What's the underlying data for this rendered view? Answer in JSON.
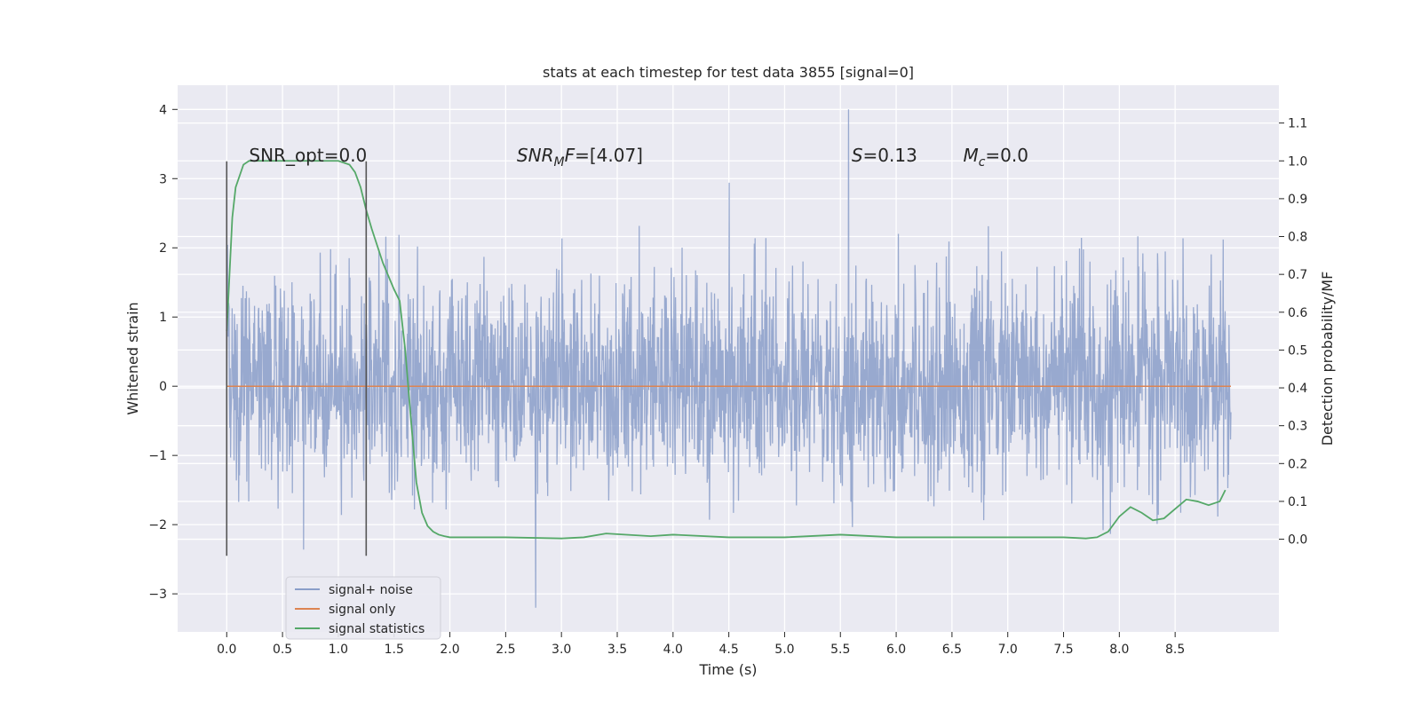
{
  "chart_data": {
    "type": "line",
    "title": "stats at each timestep for test data 3855 [signal=0]",
    "xlabel": "Time (s)",
    "ylabel": "Whitened strain",
    "y2label": "Detection probability/MF",
    "xlim": [
      -0.44,
      9.43
    ],
    "ylim": [
      -3.55,
      4.35
    ],
    "y2lim": [
      -0.245,
      1.2
    ],
    "x_ticks": [
      0.0,
      0.5,
      1.0,
      1.5,
      2.0,
      2.5,
      3.0,
      3.5,
      4.0,
      4.5,
      5.0,
      5.5,
      6.0,
      6.5,
      7.0,
      7.5,
      8.0,
      8.5
    ],
    "x_tick_labels": [
      "0.0",
      "0.5",
      "1.0",
      "1.5",
      "2.0",
      "2.5",
      "3.0",
      "3.5",
      "4.0",
      "4.5",
      "5.0",
      "5.5",
      "6.0",
      "6.5",
      "7.0",
      "7.5",
      "8.0",
      "8.5"
    ],
    "y_ticks": [
      4,
      3,
      2,
      1,
      0,
      -1,
      -2,
      -3
    ],
    "y_tick_labels": [
      "4",
      "3",
      "2",
      "1",
      "0",
      "−1",
      "−2",
      "−3"
    ],
    "y2_ticks": [
      1.1,
      1.0,
      0.9,
      0.8,
      0.7,
      0.6,
      0.5,
      0.4,
      0.3,
      0.2,
      0.1,
      0.0
    ],
    "y2_tick_labels": [
      "1.1",
      "1.0",
      "0.9",
      "0.8",
      "0.7",
      "0.6",
      "0.5",
      "0.4",
      "0.3",
      "0.2",
      "0.1",
      "0.0"
    ],
    "grid": true,
    "legend_position": "lower-left",
    "noise": {
      "x_range": [
        0.0,
        9.0
      ],
      "typical_range": [
        -1.3,
        1.5
      ],
      "max": 4.0,
      "min": -3.2
    },
    "series": [
      {
        "name": "signal+ noise",
        "color": "#8a9ec9",
        "axis": "left",
        "values": "noise"
      },
      {
        "name": "signal only",
        "color": "#dd8452",
        "axis": "left",
        "x": [
          0.0,
          9.0
        ],
        "y": [
          0.0,
          0.0
        ]
      },
      {
        "name": "signal statistics",
        "color": "#55a868",
        "axis": "right",
        "x": [
          0.0,
          0.05,
          0.08,
          0.15,
          0.2,
          0.3,
          0.5,
          0.7,
          0.9,
          1.0,
          1.1,
          1.15,
          1.2,
          1.25,
          1.3,
          1.4,
          1.5,
          1.55,
          1.6,
          1.65,
          1.7,
          1.75,
          1.8,
          1.85,
          1.9,
          1.95,
          2.0,
          2.2,
          2.5,
          3.0,
          3.2,
          3.4,
          3.8,
          4.0,
          4.5,
          5.0,
          5.5,
          6.0,
          6.5,
          7.0,
          7.5,
          7.7,
          7.8,
          7.9,
          8.0,
          8.1,
          8.2,
          8.3,
          8.4,
          8.5,
          8.6,
          8.7,
          8.8,
          8.9,
          8.95
        ],
        "y": [
          0.55,
          0.85,
          0.93,
          0.99,
          1.0,
          1.0,
          1.0,
          1.0,
          1.0,
          1.0,
          0.99,
          0.97,
          0.93,
          0.87,
          0.82,
          0.73,
          0.66,
          0.63,
          0.5,
          0.32,
          0.15,
          0.07,
          0.035,
          0.02,
          0.012,
          0.008,
          0.005,
          0.005,
          0.005,
          0.002,
          0.005,
          0.015,
          0.008,
          0.012,
          0.005,
          0.005,
          0.012,
          0.005,
          0.005,
          0.005,
          0.005,
          0.002,
          0.005,
          0.02,
          0.06,
          0.085,
          0.07,
          0.05,
          0.055,
          0.08,
          0.105,
          0.1,
          0.09,
          0.1,
          0.13
        ]
      }
    ],
    "vlines": [
      {
        "x": 0.0,
        "ymin": -2.45,
        "ymax": 3.25,
        "color": "#555555"
      },
      {
        "x": 1.25,
        "ymin": -2.45,
        "ymax": 3.25,
        "color": "#555555"
      }
    ],
    "annotations": [
      {
        "kind": "plain",
        "x": 0.2,
        "y": 3.25,
        "text": "SNR_opt=0.0"
      },
      {
        "kind": "sub",
        "x": 2.6,
        "y": 3.25,
        "main": "SNR",
        "sub": "M",
        "italic_after": "F",
        "rest": "=[4.07]"
      },
      {
        "kind": "sub",
        "x": 5.6,
        "y": 3.25,
        "main": "S",
        "sub": "",
        "italic_after": "",
        "rest": "=0.13"
      },
      {
        "kind": "sub",
        "x": 6.6,
        "y": 3.25,
        "main": "M",
        "sub": "c",
        "italic_after": "",
        "rest": "=0.0"
      }
    ]
  }
}
